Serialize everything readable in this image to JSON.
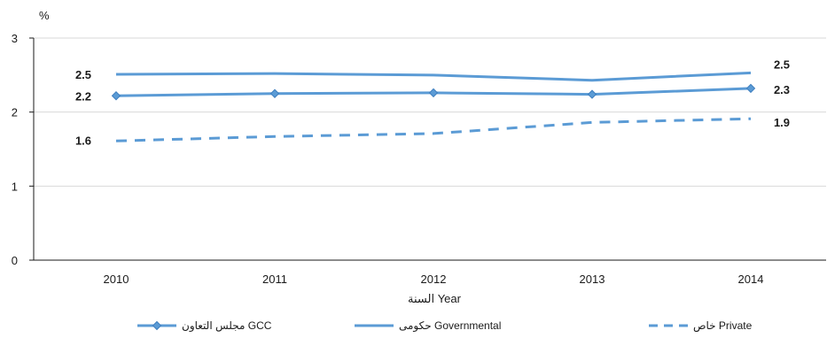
{
  "chart_data": {
    "type": "line",
    "title": "",
    "y_unit": "%",
    "xlabel": "السنة Year",
    "ylabel": "",
    "categories": [
      "2010",
      "2011",
      "2012",
      "2013",
      "2014"
    ],
    "ylim": [
      0,
      3
    ],
    "y_ticks": [
      "0",
      "1",
      "2",
      "3"
    ],
    "grid": true,
    "legend_position": "bottom",
    "series": [
      {
        "name": "مجلس التعاون GCC",
        "values": [
          2.22,
          2.25,
          2.26,
          2.24,
          2.32
        ],
        "color": "#5B9BD5",
        "style": "solid-diamond",
        "data_labels": [
          {
            "index": 0,
            "text": "2.2"
          },
          {
            "index": 4,
            "text": "2.3"
          }
        ]
      },
      {
        "name": "حكومى Governmental",
        "values": [
          2.51,
          2.52,
          2.5,
          2.43,
          2.53
        ],
        "color": "#5B9BD5",
        "style": "solid",
        "data_labels": [
          {
            "index": 0,
            "text": "2.5"
          },
          {
            "index": 4,
            "text": "2.5"
          }
        ]
      },
      {
        "name": "خاص Private",
        "values": [
          1.61,
          1.67,
          1.71,
          1.86,
          1.91
        ],
        "color": "#5B9BD5",
        "style": "dashed",
        "data_labels": [
          {
            "index": 0,
            "text": "1.6"
          },
          {
            "index": 4,
            "text": "1.9"
          }
        ]
      }
    ]
  }
}
